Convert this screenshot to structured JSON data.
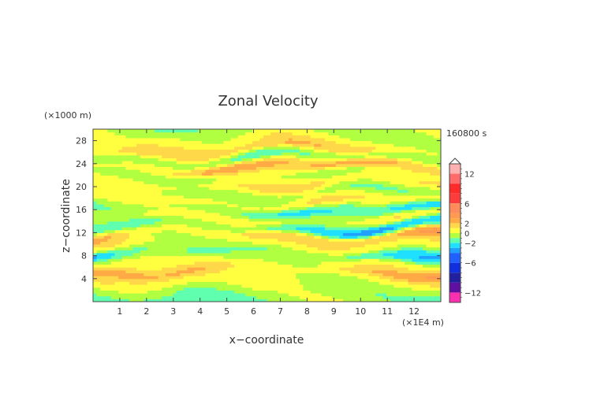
{
  "chart_data": {
    "type": "heatmap",
    "title": "Zonal Velocity",
    "xlabel": "x−coordinate",
    "ylabel": "z−coordinate",
    "x_unit": "(×1E4 m)",
    "y_unit": "(×1000 m)",
    "time_label": "160800 s",
    "xlim": [
      0,
      13
    ],
    "ylim": [
      0,
      30
    ],
    "x_ticks": [
      "1",
      "2",
      "3",
      "4",
      "5",
      "6",
      "7",
      "8",
      "9",
      "10",
      "11",
      "12"
    ],
    "y_ticks": [
      "4",
      "8",
      "12",
      "16",
      "20",
      "24",
      "28"
    ],
    "grid": false,
    "colorbar": {
      "min": -14,
      "max": 14,
      "step": 1,
      "tick_labels": [
        "12",
        "6",
        "2",
        "0",
        "−2",
        "−6",
        "−12"
      ],
      "levels": [
        {
          "range": [
            12,
            14
          ],
          "color": "#ffb0b0"
        },
        {
          "range": [
            10,
            12
          ],
          "color": "#ff6a6a"
        },
        {
          "range": [
            8,
            10
          ],
          "color": "#ff2a2a"
        },
        {
          "range": [
            6,
            8
          ],
          "color": "#ff3c3c"
        },
        {
          "range": [
            4,
            6
          ],
          "color": "#ff8a5a"
        },
        {
          "range": [
            3,
            4
          ],
          "color": "#ff9a50"
        },
        {
          "range": [
            2,
            3
          ],
          "color": "#ffaa44"
        },
        {
          "range": [
            1,
            2
          ],
          "color": "#ffd84a"
        },
        {
          "range": [
            0,
            1
          ],
          "color": "#ffff40"
        },
        {
          "range": [
            -1,
            0
          ],
          "color": "#b0ff40"
        },
        {
          "range": [
            -2,
            -1
          ],
          "color": "#60ffb0"
        },
        {
          "range": [
            -3,
            -2
          ],
          "color": "#20e0ff"
        },
        {
          "range": [
            -4,
            -3
          ],
          "color": "#20a0ff"
        },
        {
          "range": [
            -6,
            -4
          ],
          "color": "#2060ff"
        },
        {
          "range": [
            -8,
            -6
          ],
          "color": "#1030e0"
        },
        {
          "range": [
            -10,
            -8
          ],
          "color": "#2020a0"
        },
        {
          "range": [
            -12,
            -10
          ],
          "color": "#6010a0"
        },
        {
          "range": [
            -14,
            -12
          ],
          "color": "#ff30b0"
        }
      ]
    },
    "bands": [
      {
        "z": 1.0,
        "u": -1.5
      },
      {
        "z": 2.5,
        "u": -0.5
      },
      {
        "z": 4.0,
        "u": 0.8
      },
      {
        "z": 5.5,
        "u": 2.8
      },
      {
        "z": 7.0,
        "u": 0.5
      },
      {
        "z": 8.5,
        "u": -2.5
      },
      {
        "z": 10.0,
        "u": 0.6
      },
      {
        "z": 11.5,
        "u": 2.2
      },
      {
        "z": 13.0,
        "u": -2.8
      },
      {
        "z": 14.5,
        "u": 0.4
      },
      {
        "z": 16.0,
        "u": -2.0
      },
      {
        "z": 17.5,
        "u": 0.8
      },
      {
        "z": 19.0,
        "u": -0.5
      },
      {
        "z": 20.5,
        "u": 1.0
      },
      {
        "z": 22.0,
        "u": -0.2
      },
      {
        "z": 23.5,
        "u": 2.2
      },
      {
        "z": 25.0,
        "u": -1.0
      },
      {
        "z": 26.5,
        "u": 1.5
      },
      {
        "z": 28.0,
        "u": 0.5
      },
      {
        "z": 29.5,
        "u": -0.5
      }
    ]
  }
}
